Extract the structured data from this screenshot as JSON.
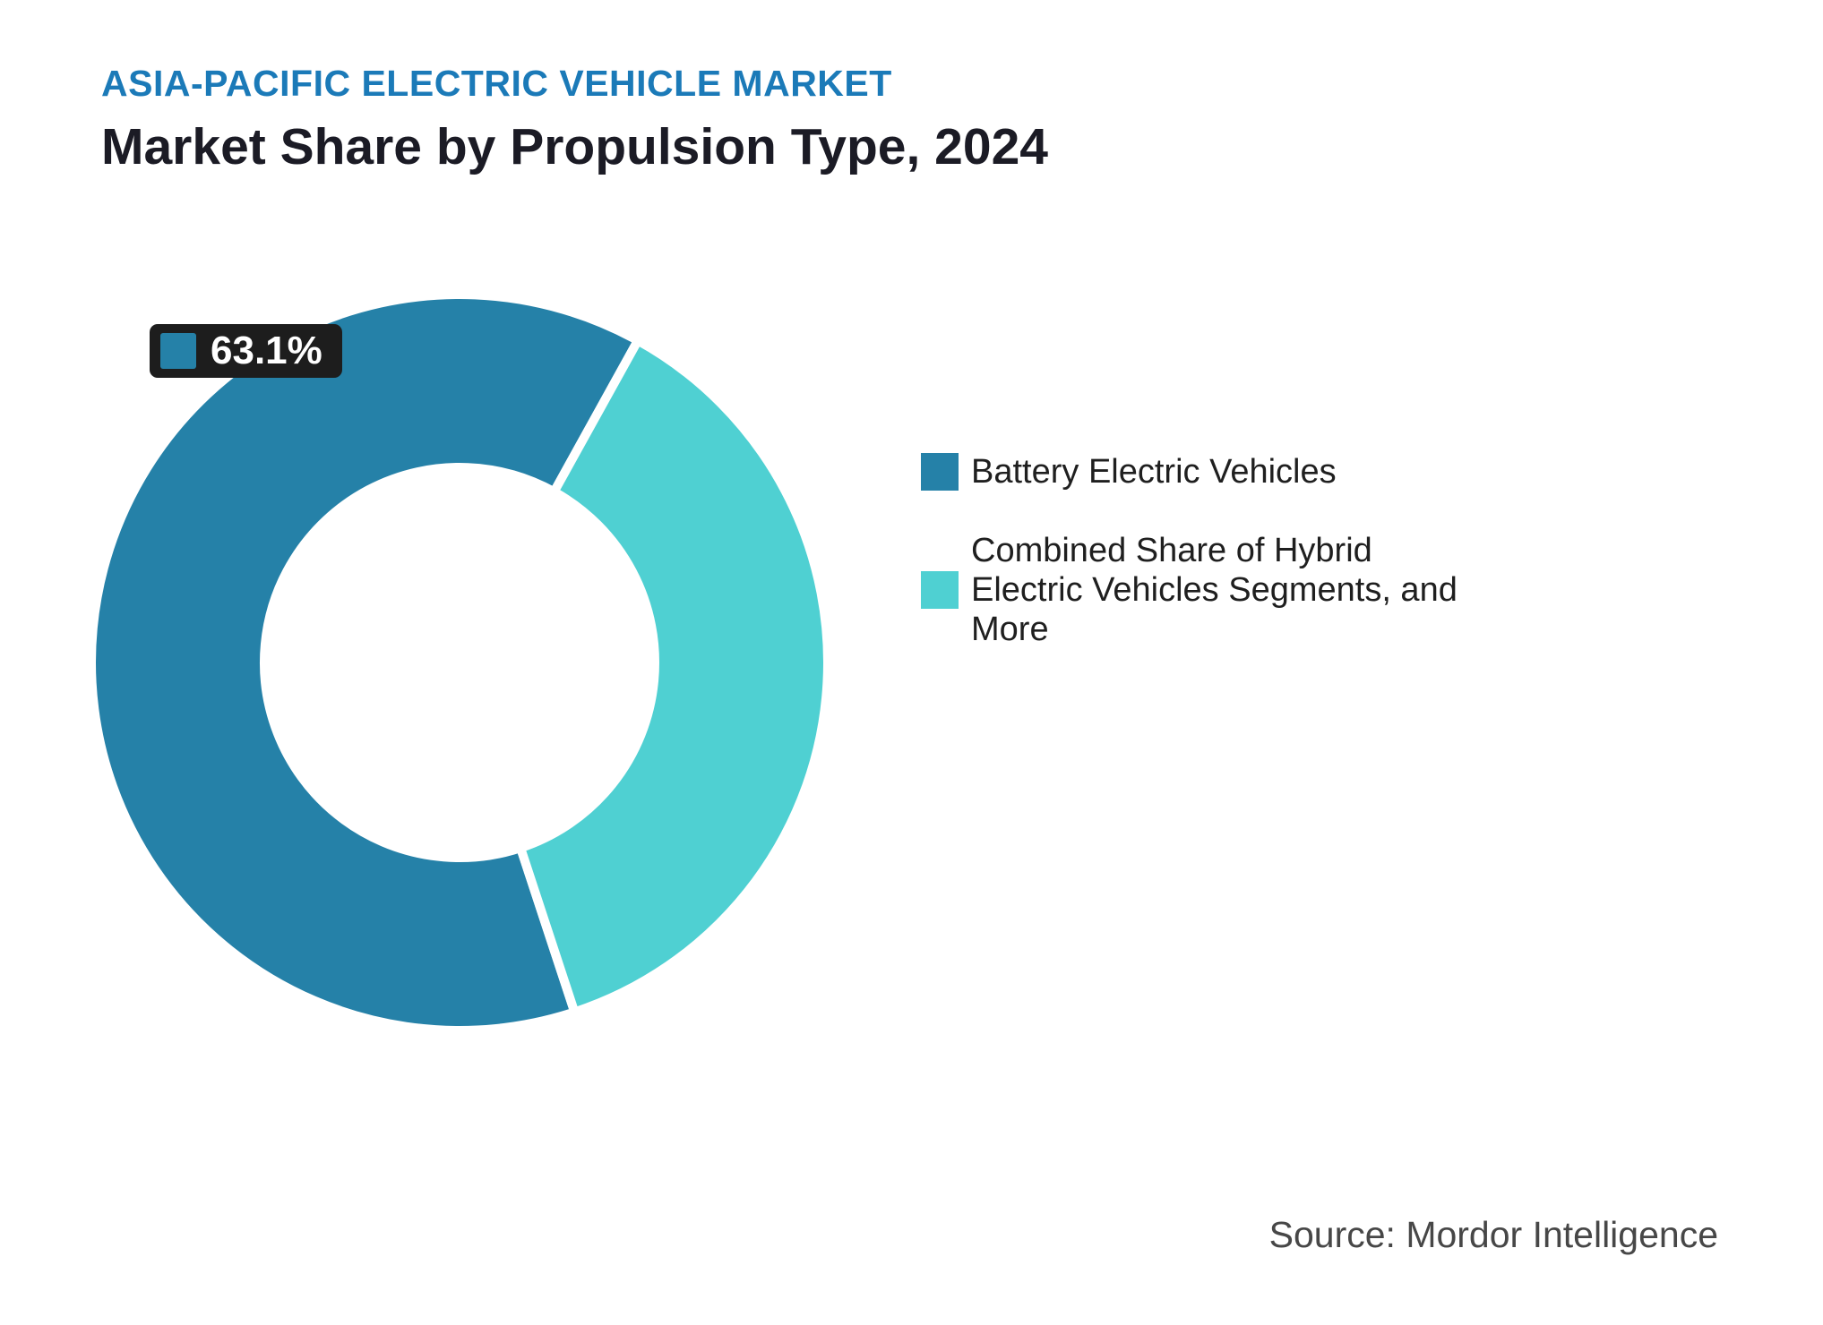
{
  "header": {
    "eyebrow": "ASIA-PACIFIC ELECTRIC VEHICLE MARKET",
    "title": "Market Share by Propulsion Type, 2024"
  },
  "chart_data": {
    "type": "pie",
    "subtype": "donut",
    "title": "Market Share by Propulsion Type, 2024",
    "units": "%",
    "series": [
      {
        "name": "Battery Electric Vehicles",
        "value": 63.1,
        "color": "#2581a8"
      },
      {
        "name": "Combined Share of Hybrid Electric Vehicles Segments, and More",
        "value": 36.9,
        "color": "#4fd0d2"
      }
    ],
    "start_angle_deg": 161.8,
    "inner_radius_ratio": 0.53,
    "slice_border_color": "#ffffff",
    "slice_border_width": 10,
    "legend_position": "right",
    "data_label": {
      "text": "63.1%",
      "swatch_color": "#2581a8",
      "background": "#1d1d1d",
      "text_color": "#ffffff"
    }
  },
  "legend": {
    "items": [
      {
        "label": "Battery Electric Vehicles",
        "color": "#2581a8"
      },
      {
        "label": "Combined Share of Hybrid\nElectric Vehicles Segments, and\nMore",
        "color": "#4fd0d2"
      }
    ]
  },
  "footer": {
    "source": "Source: Mordor Intelligence"
  },
  "colors": {
    "eyebrow_blue": "#1b7ab8",
    "title_dark": "#1b1b25",
    "background": "#ffffff"
  }
}
